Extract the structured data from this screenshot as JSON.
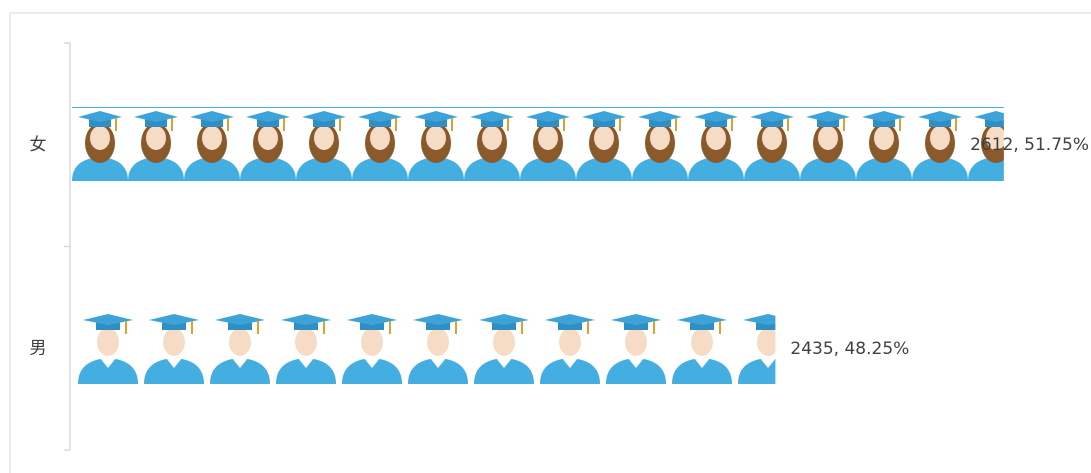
{
  "chart_data": {
    "type": "bar",
    "orientation": "horizontal",
    "categories": [
      "女",
      "男"
    ],
    "values": [
      2612,
      2435
    ],
    "value_labels": [
      "2612, 51.75%",
      "2435, 48.25%"
    ],
    "xlim": [
      1890,
      2640
    ]
  }
}
